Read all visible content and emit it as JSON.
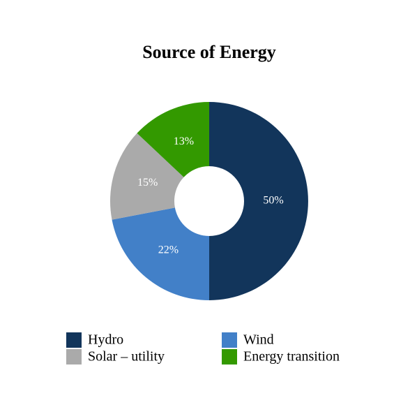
{
  "chart_data": {
    "type": "donut",
    "title": "Source of Energy",
    "categories": [
      "Hydro",
      "Wind",
      "Solar – utility",
      "Energy transition"
    ],
    "values": [
      50,
      22,
      15,
      13
    ],
    "value_labels": [
      "50%",
      "22%",
      "15%",
      "13%"
    ],
    "colors": [
      "#12355b",
      "#4280c8",
      "#aaaaaa",
      "#339900"
    ]
  }
}
